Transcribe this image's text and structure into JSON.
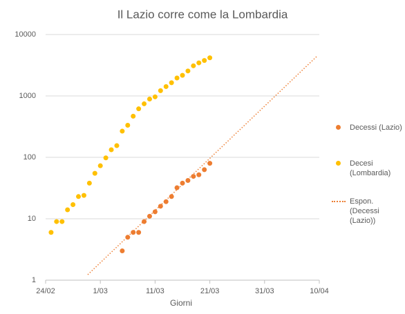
{
  "chart_data": {
    "type": "scatter",
    "title": "Il Lazio corre come la Lombardia",
    "x_label": "Giorni",
    "log_y": true,
    "grid": true,
    "legend": "right",
    "xlim": [
      0,
      50
    ],
    "xticks": [
      {
        "value": 0,
        "label": "24/02"
      },
      {
        "value": 10,
        "label": "1/03"
      },
      {
        "value": 20,
        "label": "11/03"
      },
      {
        "value": 30,
        "label": "21/03"
      },
      {
        "value": 40,
        "label": "31/03"
      },
      {
        "value": 50,
        "label": "10/04"
      }
    ],
    "ylim": [
      1,
      10000
    ],
    "yticks": [
      1,
      10,
      100,
      1000,
      10000
    ],
    "series": [
      {
        "name": "Decessi (Lazio)",
        "color": "#ed7d31",
        "style": "markers",
        "x": [
          14,
          15,
          16,
          17,
          18,
          19,
          20,
          21,
          22,
          23,
          24,
          25,
          26,
          27,
          28,
          29,
          30
        ],
        "values": [
          3,
          5,
          6,
          6,
          9,
          11,
          13,
          16,
          19,
          23,
          32,
          38,
          42,
          49,
          52,
          63,
          80
        ]
      },
      {
        "name": "Decesi (Lombardia)",
        "color": "#ffc000",
        "style": "markers",
        "x": [
          1,
          2,
          3,
          4,
          5,
          6,
          7,
          8,
          9,
          10,
          11,
          12,
          13,
          14,
          15,
          16,
          17,
          18,
          19,
          20,
          21,
          22,
          23,
          24,
          25,
          26,
          27,
          28,
          29,
          30
        ],
        "values": [
          6,
          9,
          9,
          14,
          17,
          23,
          24,
          38,
          55,
          73,
          98,
          133,
          155,
          267,
          333,
          468,
          617,
          744,
          890,
          966,
          1218,
          1420,
          1640,
          1959,
          2168,
          2549,
          3095,
          3456,
          3776,
          4178
        ]
      },
      {
        "name": "Espon. (Decessi (Lazio))",
        "color": "#ed7d31",
        "style": "dotted-line",
        "x": [
          7.7,
          49.5
        ],
        "values": [
          1.23,
          4370
        ]
      }
    ]
  }
}
